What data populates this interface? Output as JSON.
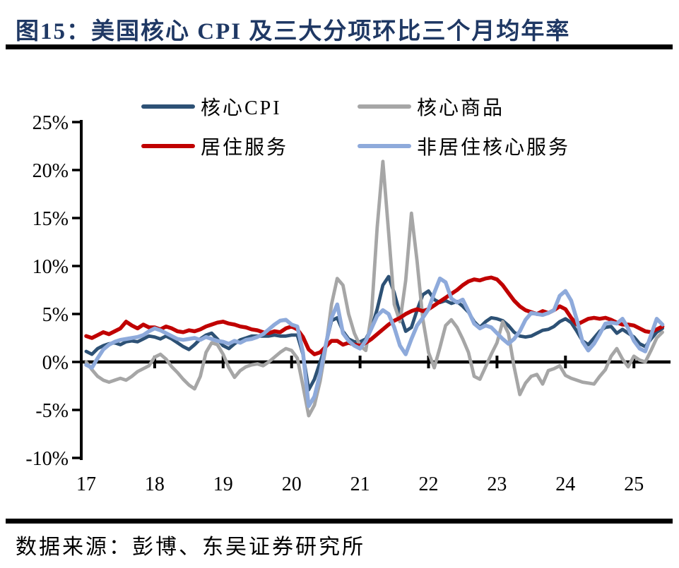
{
  "title": "图15：美国核心 CPI 及三大分项环比三个月均年率",
  "source": "数据来源：彭博、东吴证券研究所",
  "colors": {
    "title_navy": "#1F3864",
    "core_cpi": "#2D5175",
    "core_goods": "#A6A6A6",
    "housing_services": "#C00000",
    "non_housing_core_services": "#8EAADB",
    "axis": "#000000"
  },
  "chart_data": {
    "type": "line",
    "title": "美国核心 CPI 及三大分项环比三个月均年率",
    "x_unit": "month",
    "x_start": "2017-01",
    "x_end": "2025-06",
    "n_points": 102,
    "x_tick_labels": [
      "17",
      "18",
      "19",
      "20",
      "21",
      "22",
      "23",
      "24",
      "25"
    ],
    "ylim": [
      -10,
      25
    ],
    "grid": false,
    "legend_position": "top",
    "y_ticks": [
      {
        "value": 25,
        "label": "25%"
      },
      {
        "value": 20,
        "label": "20%"
      },
      {
        "value": 15,
        "label": "15%"
      },
      {
        "value": 10,
        "label": "10%"
      },
      {
        "value": 5,
        "label": "5%"
      },
      {
        "value": 0,
        "label": "0%"
      },
      {
        "value": -5,
        "label": "-5%"
      },
      {
        "value": -10,
        "label": "-10%"
      }
    ],
    "series": [
      {
        "name": "核心CPI",
        "key": "core-cpi",
        "color": "#2D5175",
        "stroke_width": 4.8,
        "values": [
          1.1,
          0.8,
          1.4,
          1.7,
          1.9,
          2.0,
          1.8,
          2.1,
          2.2,
          2.1,
          2.4,
          2.7,
          2.6,
          2.4,
          2.7,
          2.4,
          2.0,
          1.6,
          1.3,
          1.8,
          2.4,
          2.8,
          3.0,
          2.4,
          1.7,
          1.4,
          1.9,
          2.3,
          2.5,
          2.7,
          2.7,
          2.7,
          2.7,
          2.8,
          2.7,
          2.7,
          2.8,
          2.8,
          0.8,
          -2.9,
          -1.8,
          0.0,
          1.8,
          4.3,
          4.6,
          3.2,
          2.4,
          2.1,
          2.1,
          2.4,
          3.5,
          5.5,
          8.0,
          8.9,
          7.2,
          5.0,
          3.2,
          3.6,
          5.4,
          7.0,
          7.4,
          6.5,
          6.2,
          6.4,
          6.1,
          6.3,
          5.8,
          5.2,
          4.2,
          3.6,
          4.2,
          4.6,
          4.5,
          4.3,
          3.8,
          3.1,
          2.7,
          2.6,
          2.7,
          3.0,
          3.3,
          3.4,
          3.7,
          4.2,
          4.5,
          4.1,
          3.2,
          2.2,
          1.8,
          2.5,
          3.2,
          3.6,
          3.7,
          3.0,
          3.4,
          3.0,
          2.6,
          1.9,
          1.6,
          2.4,
          3.1,
          3.5
        ]
      },
      {
        "name": "核心商品",
        "key": "core-goods",
        "color": "#A6A6A6",
        "stroke_width": 4.8,
        "values": [
          0.0,
          -0.8,
          -1.5,
          -1.9,
          -2.1,
          -1.9,
          -1.7,
          -1.9,
          -1.5,
          -1.0,
          -0.7,
          -0.4,
          0.5,
          0.8,
          0.3,
          -0.5,
          -1.1,
          -1.8,
          -2.4,
          -2.8,
          -1.5,
          1.0,
          2.0,
          1.8,
          0.8,
          -0.6,
          -1.6,
          -0.9,
          -0.5,
          -0.3,
          -0.2,
          -0.4,
          0.0,
          0.5,
          1.0,
          1.4,
          1.2,
          0.4,
          -2.5,
          -5.6,
          -4.5,
          -2.0,
          1.5,
          6.0,
          8.7,
          8.0,
          5.0,
          3.0,
          1.7,
          1.2,
          5.0,
          14.0,
          20.9,
          13.5,
          6.0,
          4.2,
          8.5,
          15.5,
          10.5,
          4.5,
          1.0,
          -0.6,
          1.5,
          3.8,
          4.4,
          3.6,
          2.4,
          1.0,
          -1.5,
          -1.8,
          -0.5,
          0.8,
          2.0,
          4.2,
          3.0,
          -0.5,
          -3.4,
          -2.2,
          -1.5,
          -1.3,
          -2.3,
          -0.9,
          -0.7,
          -0.4,
          -1.4,
          -1.7,
          -1.9,
          -2.1,
          -2.2,
          -2.3,
          -1.5,
          -0.8,
          0.6,
          1.4,
          0.3,
          -0.5,
          0.6,
          0.2,
          0.0,
          1.2,
          2.5,
          3.1
        ]
      },
      {
        "name": "居住服务",
        "key": "housing-services",
        "color": "#C00000",
        "stroke_width": 5.5,
        "values": [
          2.7,
          2.5,
          2.8,
          3.1,
          2.9,
          3.2,
          3.5,
          4.2,
          3.8,
          3.5,
          3.9,
          3.6,
          3.6,
          3.4,
          3.7,
          3.5,
          3.2,
          3.1,
          3.3,
          3.2,
          3.4,
          3.7,
          3.9,
          4.1,
          4.2,
          4.0,
          3.9,
          3.7,
          3.6,
          3.4,
          3.3,
          3.1,
          3.0,
          3.2,
          3.1,
          3.5,
          3.7,
          3.4,
          2.6,
          1.3,
          0.8,
          1.0,
          1.6,
          2.2,
          2.2,
          1.8,
          2.0,
          1.8,
          1.7,
          2.0,
          2.4,
          2.9,
          3.4,
          3.9,
          4.3,
          4.6,
          5.0,
          5.3,
          5.5,
          5.3,
          5.5,
          5.9,
          6.3,
          6.7,
          7.1,
          7.5,
          8.0,
          8.4,
          8.6,
          8.5,
          8.7,
          8.8,
          8.6,
          8.0,
          7.2,
          6.4,
          5.8,
          5.4,
          5.2,
          5.0,
          5.3,
          5.1,
          5.4,
          5.8,
          5.5,
          4.6,
          3.9,
          4.2,
          4.5,
          4.6,
          4.5,
          4.6,
          4.4,
          4.1,
          3.9,
          3.9,
          3.8,
          3.5,
          3.2,
          3.1,
          3.4,
          3.7
        ]
      },
      {
        "name": "非居住核心服务",
        "key": "non-housing-core-services",
        "color": "#8EAADB",
        "stroke_width": 5.5,
        "values": [
          -0.3,
          -0.6,
          0.4,
          1.3,
          1.8,
          2.1,
          2.3,
          2.4,
          2.5,
          2.6,
          2.8,
          3.2,
          3.5,
          3.3,
          3.0,
          2.7,
          2.4,
          2.3,
          2.4,
          2.5,
          2.3,
          2.6,
          2.4,
          2.2,
          2.1,
          1.9,
          2.2,
          2.0,
          2.3,
          2.4,
          2.6,
          2.9,
          3.4,
          3.9,
          4.3,
          4.4,
          3.9,
          3.7,
          1.0,
          -4.6,
          -3.6,
          -1.2,
          1.8,
          4.6,
          6.0,
          3.0,
          2.2,
          1.7,
          1.4,
          2.2,
          3.5,
          4.8,
          5.4,
          5.0,
          3.6,
          1.7,
          0.8,
          2.4,
          3.8,
          4.6,
          5.5,
          7.2,
          8.7,
          8.3,
          6.6,
          6.2,
          6.5,
          5.3,
          4.0,
          3.5,
          3.8,
          3.6,
          3.0,
          2.4,
          1.9,
          2.4,
          3.2,
          4.4,
          5.1,
          5.0,
          4.9,
          5.1,
          5.4,
          6.9,
          7.4,
          6.4,
          4.4,
          2.1,
          1.2,
          1.9,
          2.9,
          4.0,
          4.1,
          4.0,
          4.5,
          3.5,
          2.2,
          1.4,
          1.1,
          2.8,
          4.5,
          3.9
        ]
      }
    ]
  }
}
